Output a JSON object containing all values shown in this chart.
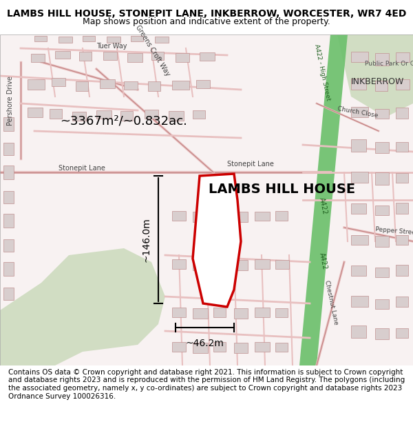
{
  "title_line1": "LAMBS HILL HOUSE, STONEPIT LANE, INKBERROW, WORCESTER, WR7 4ED",
  "title_line2": "Map shows position and indicative extent of the property.",
  "property_label": "LAMBS HILL HOUSE",
  "area_label": "~3367m²/~0.832ac.",
  "height_label": "~146.0m",
  "width_label": "~46.2m",
  "footer_text": "Contains OS data © Crown copyright and database right 2021. This information is subject to Crown copyright and database rights 2023 and is reproduced with the permission of HM Land Registry. The polygons (including the associated geometry, namely x, y co-ordinates) are subject to Crown copyright and database rights 2023 Ordnance Survey 100026316.",
  "bg_color": "#f5f0f0",
  "map_bg": "#f9f4f4",
  "road_color": "#e8a0a0",
  "road_fill": "#ffffff",
  "building_color": "#d4c8c8",
  "building_fill": "#e0d8d8",
  "property_edge_color": "#cc0000",
  "property_fill": "#ffffff",
  "green_road_color": "#5cb85c",
  "green_area_color": "#c8d8c0",
  "title_fontsize": 10,
  "subtitle_fontsize": 9,
  "label_fontsize": 11,
  "property_label_fontsize": 14,
  "footer_fontsize": 7.5
}
